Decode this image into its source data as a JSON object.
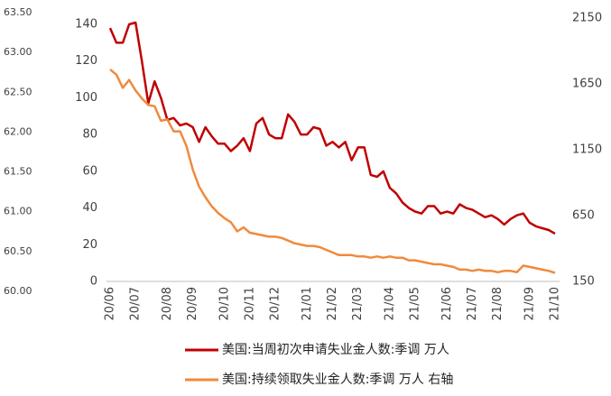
{
  "chart_data": {
    "type": "line",
    "categories": [
      "20/06",
      null,
      null,
      null,
      "20/07",
      null,
      null,
      null,
      null,
      "20/08",
      null,
      null,
      null,
      "20/09",
      null,
      null,
      null,
      null,
      "20/10",
      null,
      null,
      null,
      "20/11",
      null,
      null,
      null,
      "20/12",
      null,
      null,
      null,
      null,
      "21/01",
      null,
      null,
      null,
      "21/02",
      null,
      null,
      null,
      "21/03",
      null,
      null,
      null,
      null,
      "21/04",
      null,
      null,
      null,
      "21/05",
      null,
      null,
      null,
      null,
      "21/06",
      null,
      null,
      null,
      "21/07",
      null,
      null,
      null,
      "21/08",
      null,
      null,
      null,
      null,
      "21/09",
      null,
      null,
      null,
      "21/10"
    ],
    "series": [
      {
        "name": "美国:当周初次申请失业金人数:季调 万人",
        "color": "#c00000",
        "values": [
          138,
          130,
          130,
          140,
          141,
          120,
          97,
          109,
          100,
          88,
          89,
          85,
          86,
          84,
          76,
          84,
          79,
          75,
          75,
          71,
          74,
          78,
          71,
          86,
          89,
          80,
          78,
          78,
          91,
          87,
          80,
          80,
          84,
          83,
          74,
          76,
          73,
          76,
          66,
          73,
          73,
          58,
          57,
          60,
          51,
          48,
          43,
          40,
          38,
          37,
          41,
          41,
          37,
          38,
          37,
          42,
          40,
          39,
          37,
          35,
          36,
          34,
          31,
          34,
          36,
          37,
          32,
          30,
          29,
          28,
          26
        ]
      },
      {
        "name": "美国:持续领取失业金人数:季调 万人 右轴",
        "color": "#f08a3c",
        "axis": "y2",
        "values": [
          1760,
          1720,
          1620,
          1680,
          1600,
          1540,
          1490,
          1480,
          1370,
          1380,
          1290,
          1290,
          1180,
          1000,
          870,
          790,
          720,
          670,
          630,
          600,
          530,
          560,
          520,
          510,
          500,
          490,
          490,
          480,
          460,
          440,
          430,
          420,
          420,
          410,
          390,
          370,
          350,
          350,
          350,
          340,
          340,
          330,
          340,
          330,
          340,
          330,
          330,
          310,
          310,
          300,
          290,
          280,
          280,
          270,
          260,
          240,
          240,
          230,
          240,
          230,
          230,
          220,
          230,
          230,
          220,
          270,
          260,
          250,
          240,
          230,
          215
        ]
      }
    ],
    "ylim": [
      0,
      140
    ],
    "yticks": [
      0,
      20,
      40,
      60,
      80,
      100,
      120,
      140
    ],
    "y2lim": [
      150,
      2150
    ],
    "y2ticks": [
      150,
      650,
      1150,
      1650,
      2150
    ],
    "y3lim": [
      60,
      63.5
    ],
    "y3ticks": [
      {
        "value": 60,
        "label": "60.00"
      },
      {
        "value": 60.5,
        "label": "60.50"
      },
      {
        "value": 61,
        "label": "61.00"
      },
      {
        "value": 61.5,
        "label": "61.50"
      },
      {
        "value": 62,
        "label": "62.00"
      },
      {
        "value": 62.5,
        "label": "62.50"
      },
      {
        "value": 63,
        "label": "63.00"
      },
      {
        "value": 63.5,
        "label": "63.50"
      }
    ]
  }
}
